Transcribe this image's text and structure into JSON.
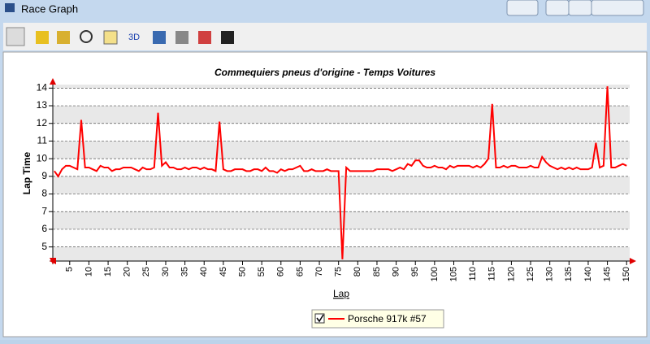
{
  "window": {
    "title": "Race Graph"
  },
  "toolbar": {
    "buttons": [
      "3D"
    ]
  },
  "chart_data": {
    "type": "line",
    "title": "Commequiers pneus d'origine - Temps Voitures",
    "x_label": "Lap",
    "y_label": "Lap Time",
    "x": [
      1,
      2,
      3,
      4,
      5,
      6,
      7,
      8,
      9,
      10,
      11,
      12,
      13,
      14,
      15,
      16,
      17,
      18,
      19,
      20,
      21,
      22,
      23,
      24,
      25,
      26,
      27,
      28,
      29,
      30,
      31,
      32,
      33,
      34,
      35,
      36,
      37,
      38,
      39,
      40,
      41,
      42,
      43,
      44,
      45,
      46,
      47,
      48,
      49,
      50,
      51,
      52,
      53,
      54,
      55,
      56,
      57,
      58,
      59,
      60,
      61,
      62,
      63,
      64,
      65,
      66,
      67,
      68,
      69,
      70,
      71,
      72,
      73,
      74,
      75,
      76,
      77,
      78,
      79,
      80,
      81,
      82,
      83,
      84,
      85,
      86,
      87,
      88,
      89,
      90,
      91,
      92,
      93,
      94,
      95,
      96,
      97,
      98,
      99,
      100,
      101,
      102,
      103,
      104,
      105,
      106,
      107,
      108,
      109,
      110,
      111,
      112,
      113,
      114,
      115,
      116,
      117,
      118,
      119,
      120,
      121,
      122,
      123,
      124,
      125,
      126,
      127,
      128,
      129,
      130,
      131,
      132,
      133,
      134,
      135,
      136,
      137,
      138,
      139,
      140,
      141,
      142,
      143,
      144,
      145,
      146,
      147,
      148,
      149,
      150
    ],
    "series": [
      {
        "name": "Porsche 917k #57",
        "color": "#ff0000",
        "values": [
          9.3,
          9.0,
          9.4,
          9.6,
          9.6,
          9.5,
          9.4,
          12.2,
          9.5,
          9.5,
          9.4,
          9.3,
          9.6,
          9.5,
          9.5,
          9.3,
          9.4,
          9.4,
          9.5,
          9.5,
          9.5,
          9.4,
          9.3,
          9.5,
          9.4,
          9.4,
          9.5,
          12.6,
          9.6,
          9.8,
          9.5,
          9.5,
          9.4,
          9.4,
          9.5,
          9.4,
          9.5,
          9.5,
          9.4,
          9.5,
          9.4,
          9.4,
          9.3,
          12.1,
          9.4,
          9.3,
          9.3,
          9.4,
          9.4,
          9.4,
          9.3,
          9.3,
          9.4,
          9.4,
          9.3,
          9.5,
          9.3,
          9.3,
          9.2,
          9.4,
          9.3,
          9.4,
          9.4,
          9.5,
          9.6,
          9.3,
          9.3,
          9.4,
          9.3,
          9.3,
          9.3,
          9.4,
          9.3,
          9.3,
          9.3,
          4.3,
          9.5,
          9.3,
          9.3,
          9.3,
          9.3,
          9.3,
          9.3,
          9.3,
          9.4,
          9.4,
          9.4,
          9.4,
          9.3,
          9.4,
          9.5,
          9.4,
          9.7,
          9.6,
          9.9,
          9.9,
          9.6,
          9.5,
          9.5,
          9.6,
          9.5,
          9.5,
          9.4,
          9.6,
          9.5,
          9.6,
          9.6,
          9.6,
          9.6,
          9.5,
          9.6,
          9.5,
          9.7,
          10.0,
          13.1,
          9.5,
          9.5,
          9.6,
          9.5,
          9.6,
          9.6,
          9.5,
          9.5,
          9.5,
          9.6,
          9.5,
          9.5,
          10.1,
          9.8,
          9.6,
          9.5,
          9.4,
          9.5,
          9.4,
          9.5,
          9.4,
          9.5,
          9.4,
          9.4,
          9.4,
          9.5,
          10.9,
          9.5,
          9.6,
          14.1,
          9.5,
          9.5,
          9.6,
          9.7,
          9.6
        ]
      }
    ],
    "xlim": [
      0.6,
      150.8
    ],
    "xticks": [
      5,
      10,
      15,
      20,
      25,
      30,
      35,
      40,
      45,
      50,
      55,
      60,
      65,
      70,
      75,
      80,
      85,
      90,
      95,
      100,
      105,
      110,
      115,
      120,
      125,
      130,
      135,
      140,
      145,
      150
    ],
    "ylim": [
      4.2,
      14.2
    ],
    "yticks": [
      5,
      6,
      7,
      8,
      9,
      10,
      11,
      12,
      13,
      14
    ],
    "grid": true
  }
}
